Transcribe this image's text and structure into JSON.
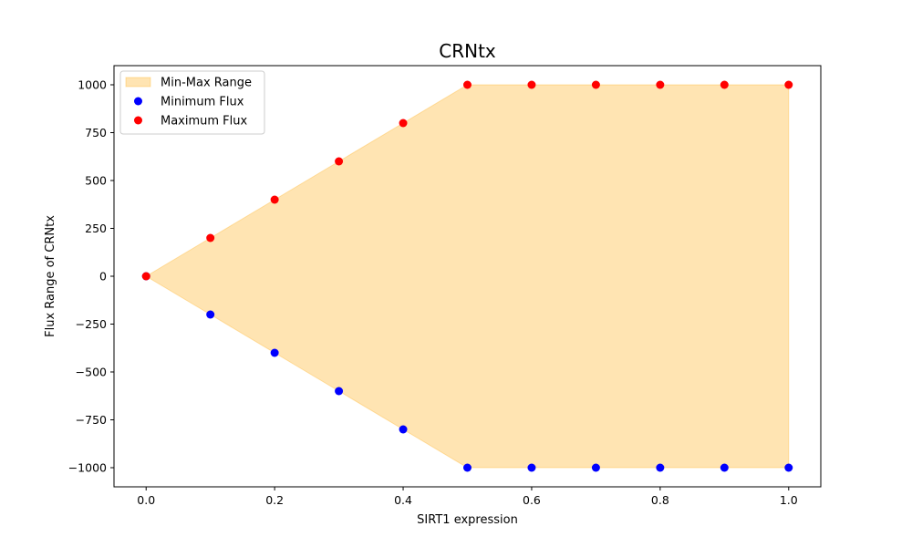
{
  "chart_data": {
    "type": "scatter",
    "title": "CRNtx",
    "xlabel": "SIRT1 expression",
    "ylabel": "Flux Range of CRNtx",
    "xlim": [
      -0.05,
      1.05
    ],
    "ylim": [
      -1100,
      1100
    ],
    "x_ticks": [
      0.0,
      0.2,
      0.4,
      0.6,
      0.8,
      1.0
    ],
    "x_tick_labels": [
      "0.0",
      "0.2",
      "0.4",
      "0.6",
      "0.8",
      "1.0"
    ],
    "y_ticks": [
      1000,
      750,
      500,
      250,
      0,
      -250,
      -500,
      -750,
      -1000
    ],
    "y_tick_labels": [
      "1000",
      "750",
      "500",
      "250",
      "0",
      "−250",
      "−500",
      "−750",
      "−1000"
    ],
    "x": [
      0.0,
      0.1,
      0.2,
      0.3,
      0.4,
      0.5,
      0.6,
      0.7,
      0.8,
      0.9,
      1.0
    ],
    "series": [
      {
        "name": "Min-Max Range",
        "kind": "fill_between",
        "color": "#ffa500",
        "alpha": 0.3
      },
      {
        "name": "Minimum Flux",
        "kind": "scatter",
        "color": "#0000ff",
        "values": [
          0,
          -200,
          -400,
          -600,
          -800,
          -1000,
          -1000,
          -1000,
          -1000,
          -1000,
          -1000
        ]
      },
      {
        "name": "Maximum Flux",
        "kind": "scatter",
        "color": "#ff0000",
        "values": [
          0,
          200,
          400,
          600,
          800,
          1000,
          1000,
          1000,
          1000,
          1000,
          1000
        ]
      }
    ],
    "legend": {
      "position": "top-left",
      "entries": [
        "Min-Max Range",
        "Minimum Flux",
        "Maximum Flux"
      ]
    },
    "grid": false
  }
}
